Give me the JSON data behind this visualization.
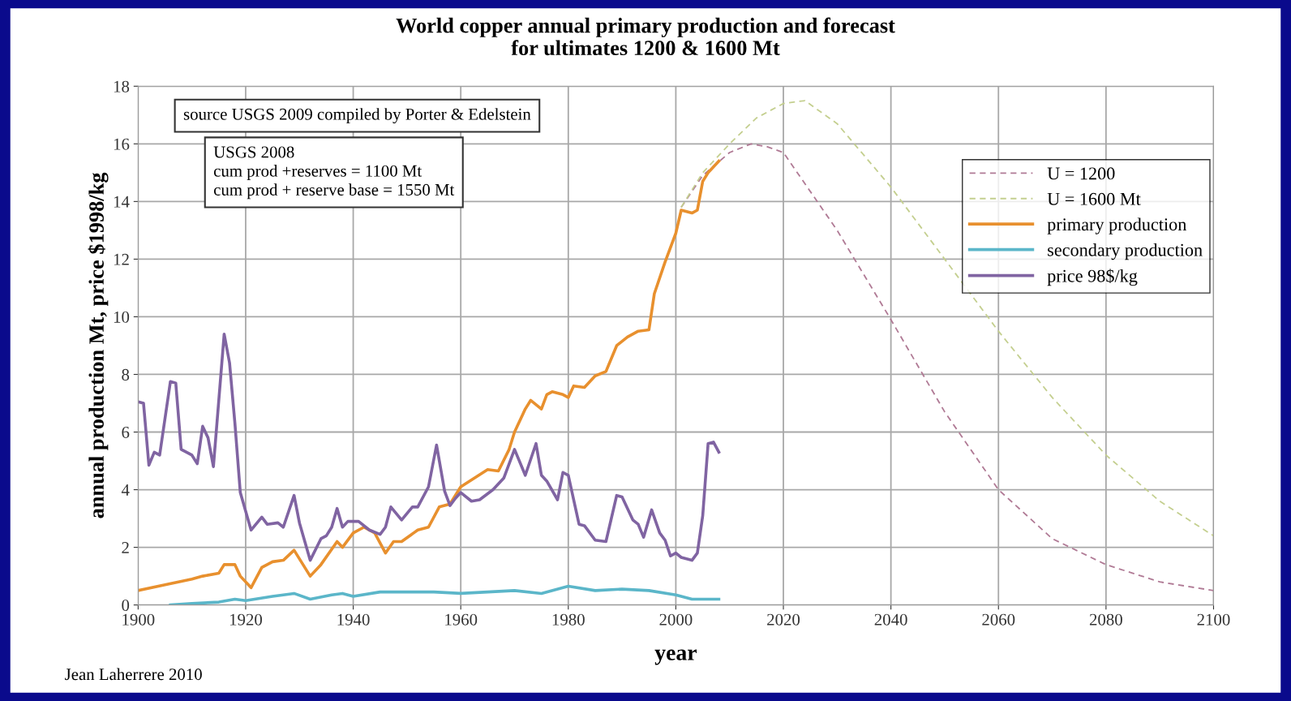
{
  "chart_data": {
    "type": "line",
    "title": "World copper annual primary production and forecast\nfor ultimates 1200 & 1600 Mt",
    "xlabel": "year",
    "ylabel": "annual production Mt, price $1998/kg",
    "xlim": [
      1900,
      2100
    ],
    "xticks": [
      1900,
      1920,
      1940,
      1960,
      1980,
      2000,
      2020,
      2040,
      2060,
      2080,
      2100
    ],
    "ylim": [
      0,
      18
    ],
    "yticks": [
      0,
      2,
      4,
      6,
      8,
      10,
      12,
      14,
      16,
      18
    ],
    "grid": true,
    "legend": "right",
    "annotations": [
      "source USGS 2009 compiled by Porter & Edelstein",
      "USGS 2008\ncum prod +reserves = 1100 Mt\ncum prod + reserve base = 1550 Mt",
      "Jean Laherrere 2010"
    ],
    "series": [
      {
        "name": "U = 1200",
        "color": "#b07a95",
        "line_style": "dashed",
        "x": [
          2001,
          2005,
          2010,
          2014,
          2017,
          2020,
          2030,
          2040,
          2050,
          2060,
          2070,
          2080,
          2090,
          2100
        ],
        "values": [
          13.8,
          14.9,
          15.7,
          16.0,
          15.9,
          15.7,
          13.0,
          9.9,
          6.7,
          4.0,
          2.3,
          1.4,
          0.8,
          0.5
        ]
      },
      {
        "name": "U = 1600 Mt",
        "color": "#c4cf8f",
        "line_style": "dashed",
        "x": [
          2001,
          2005,
          2010,
          2015,
          2020,
          2024,
          2030,
          2040,
          2050,
          2060,
          2070,
          2080,
          2090,
          2100
        ],
        "values": [
          13.8,
          15.0,
          16.0,
          16.9,
          17.4,
          17.5,
          16.7,
          14.5,
          12.0,
          9.5,
          7.2,
          5.2,
          3.6,
          2.4
        ]
      },
      {
        "name": "primary production",
        "color": "#e8902e",
        "line_style": "solid",
        "x": [
          1900,
          1905,
          1910,
          1912,
          1915,
          1916,
          1918,
          1919,
          1921,
          1923,
          1925,
          1927,
          1929,
          1932,
          1934,
          1937,
          1938,
          1940,
          1942,
          1944,
          1946,
          1947.5,
          1949,
          1952,
          1954,
          1956,
          1958,
          1960,
          1965,
          1967,
          1969,
          1970,
          1972,
          1973,
          1975,
          1976,
          1977,
          1979,
          1980,
          1981,
          1983,
          1985,
          1987,
          1989,
          1991,
          1993,
          1995,
          1996,
          1998,
          2000,
          2001,
          2003,
          2004,
          2005,
          2006,
          2008
        ],
        "values": [
          0.5,
          0.7,
          0.9,
          1.0,
          1.1,
          1.4,
          1.4,
          1.0,
          0.6,
          1.3,
          1.5,
          1.55,
          1.9,
          1.0,
          1.4,
          2.2,
          2.0,
          2.5,
          2.7,
          2.5,
          1.8,
          2.2,
          2.2,
          2.6,
          2.7,
          3.4,
          3.5,
          4.1,
          4.7,
          4.65,
          5.4,
          6.0,
          6.8,
          7.1,
          6.8,
          7.3,
          7.4,
          7.3,
          7.2,
          7.6,
          7.55,
          7.95,
          8.1,
          9.0,
          9.3,
          9.5,
          9.55,
          10.8,
          11.9,
          12.9,
          13.7,
          13.6,
          13.7,
          14.7,
          15.0,
          15.4
        ]
      },
      {
        "name": "secondary production",
        "color": "#5bb6c9",
        "line_style": "solid",
        "x": [
          1906,
          1910,
          1915,
          1918,
          1920,
          1925,
          1929,
          1932,
          1936,
          1938,
          1940,
          1945,
          1950,
          1955,
          1960,
          1965,
          1970,
          1975,
          1980,
          1985,
          1990,
          1995,
          2000,
          2003,
          2008
        ],
        "values": [
          0.0,
          0.05,
          0.1,
          0.2,
          0.15,
          0.3,
          0.4,
          0.2,
          0.35,
          0.4,
          0.3,
          0.45,
          0.45,
          0.45,
          0.4,
          0.45,
          0.5,
          0.4,
          0.65,
          0.5,
          0.55,
          0.5,
          0.35,
          0.2,
          0.2
        ]
      },
      {
        "name": "price 98$/kg",
        "color": "#8064a2",
        "line_style": "solid",
        "x": [
          1900,
          1901,
          1902,
          1903,
          1904,
          1906,
          1907,
          1908,
          1910,
          1911,
          1912,
          1913,
          1914,
          1916,
          1917,
          1918,
          1919,
          1921,
          1923,
          1924,
          1926,
          1927,
          1929,
          1930,
          1932,
          1934,
          1935,
          1936,
          1937,
          1938,
          1939,
          1941,
          1943,
          1945,
          1946,
          1947,
          1949,
          1951,
          1952,
          1954,
          1955.5,
          1957,
          1958,
          1959,
          1960,
          1962,
          1963.5,
          1966,
          1968,
          1970,
          1972,
          1974,
          1975,
          1976,
          1978,
          1979,
          1980,
          1982,
          1983,
          1985,
          1987,
          1989,
          1990,
          1992,
          1993,
          1994,
          1995.5,
          1997,
          1998,
          1999,
          2000,
          2001,
          2003,
          2004,
          2005,
          2006,
          2007,
          2008
        ],
        "values": [
          7.05,
          7.0,
          4.85,
          5.3,
          5.2,
          7.75,
          7.7,
          5.4,
          5.2,
          4.9,
          6.2,
          5.8,
          4.8,
          9.4,
          8.4,
          6.3,
          3.9,
          2.6,
          3.05,
          2.8,
          2.85,
          2.7,
          3.8,
          2.85,
          1.55,
          2.3,
          2.4,
          2.7,
          3.35,
          2.7,
          2.9,
          2.9,
          2.6,
          2.45,
          2.7,
          3.4,
          2.95,
          3.4,
          3.4,
          4.1,
          5.55,
          3.95,
          3.45,
          3.7,
          3.9,
          3.6,
          3.65,
          4.0,
          4.4,
          5.4,
          4.5,
          5.6,
          4.5,
          4.3,
          3.65,
          4.6,
          4.5,
          2.8,
          2.75,
          2.25,
          2.2,
          3.8,
          3.75,
          2.95,
          2.8,
          2.35,
          3.3,
          2.5,
          2.25,
          1.7,
          1.8,
          1.65,
          1.55,
          1.8,
          3.1,
          5.6,
          5.65,
          5.3
        ]
      }
    ]
  }
}
